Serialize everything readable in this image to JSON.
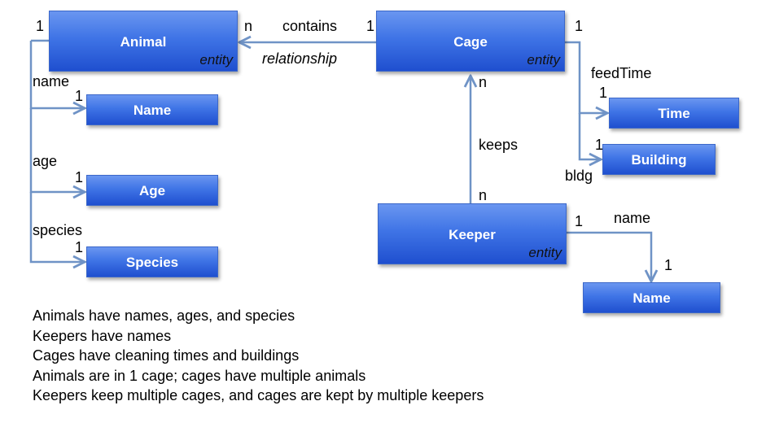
{
  "entities": {
    "animal": {
      "name": "Animal",
      "stereotype": "entity"
    },
    "cage": {
      "name": "Cage",
      "stereotype": "entity"
    },
    "keeper": {
      "name": "Keeper",
      "stereotype": "entity"
    }
  },
  "attributes": {
    "animal_name": "Name",
    "age": "Age",
    "species": "Species",
    "time": "Time",
    "building": "Building",
    "keeper_name": "Name"
  },
  "relationship": {
    "name": "contains",
    "kind": "relationship",
    "animal_side": "n",
    "cage_side": "1"
  },
  "keeps": {
    "name": "keeps",
    "cage_side": "n",
    "keeper_side": "n"
  },
  "edge_labels": {
    "animal_name": "name",
    "age": "age",
    "species": "species",
    "feed_time": "feedTime",
    "bldg": "bldg",
    "keeper_name": "name"
  },
  "cardinalities": {
    "animal_left": "1",
    "animal_name": "1",
    "age": "1",
    "species": "1",
    "cage_right": "1",
    "time": "1",
    "building": "1",
    "keeper_right": "1",
    "keeper_name": "1"
  },
  "notes": [
    "Animals have names, ages, and species",
    "Keepers have names",
    "Cages have cleaning times and buildings",
    "Animals are in 1 cage; cages have multiple animals",
    "Keepers keep multiple cages, and cages are kept by multiple keepers"
  ],
  "colors": {
    "box": "#3f74e6",
    "line": "#6f93c6"
  }
}
